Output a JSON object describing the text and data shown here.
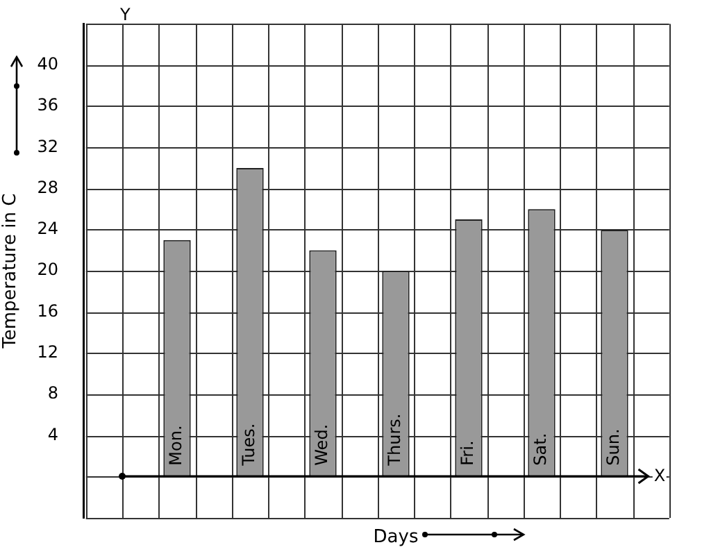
{
  "chart_data": {
    "type": "bar",
    "categories": [
      "Mon.",
      "Tues.",
      "Wed.",
      "Thurs.",
      "Fri.",
      "Sat.",
      "Sun."
    ],
    "values": [
      23,
      30,
      22,
      20,
      25,
      26,
      24
    ],
    "color": "#999999",
    "xlabel": "Days",
    "ylabel": "Temperature in C",
    "ylim": [
      -4,
      44
    ],
    "yticks": [
      {
        "value": -4,
        "label": null
      },
      {
        "value": 0,
        "label": null
      },
      4,
      8,
      12,
      16,
      20,
      24,
      28,
      32,
      36,
      40,
      {
        "value": 44,
        "label": null
      }
    ],
    "grid": true,
    "legend": false,
    "annotations": [
      "Y",
      "X"
    ]
  }
}
